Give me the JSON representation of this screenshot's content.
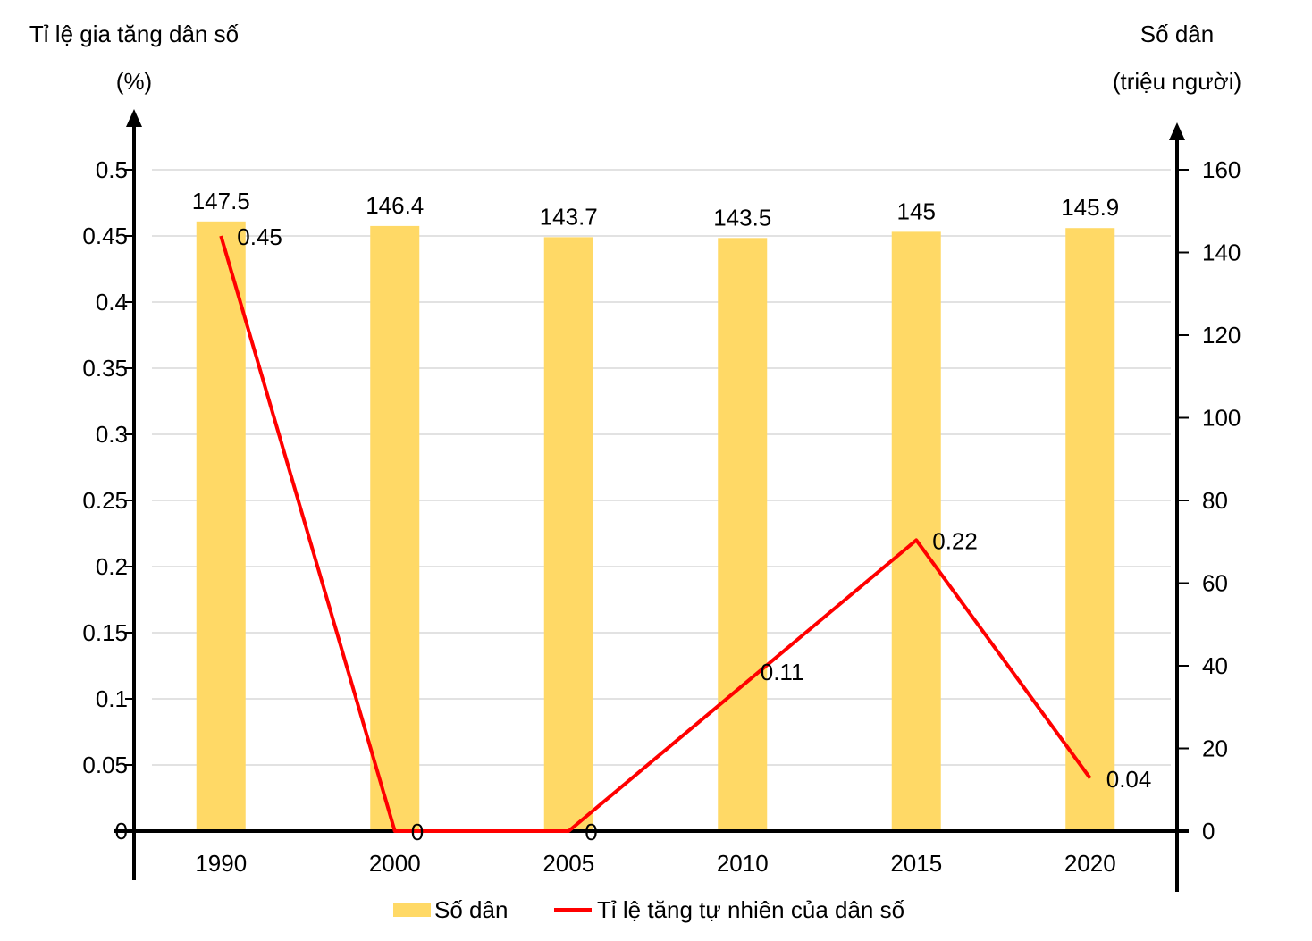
{
  "left_axis": {
    "title_line1": "Tỉ lệ gia tăng dân số",
    "title_line2": "(%)",
    "ticks": [
      "0",
      "0.05",
      "0.1",
      "0.15",
      "0.2",
      "0.25",
      "0.3",
      "0.35",
      "0.4",
      "0.45",
      "0.5"
    ]
  },
  "right_axis": {
    "title_line1": "Số dân",
    "title_line2": "(triệu người)",
    "ticks": [
      "0",
      "20",
      "40",
      "60",
      "80",
      "100",
      "120",
      "140",
      "160"
    ]
  },
  "legend": {
    "bar_label": "Số dân",
    "line_label": "Tỉ lệ tăng tự nhiên của dân số"
  },
  "colors": {
    "bar": "#FFD966",
    "line": "#FF0000",
    "axis": "#000000",
    "grid": "#D9D9D9"
  },
  "chart_data": {
    "type": "bar+line",
    "categories": [
      "1990",
      "2000",
      "2005",
      "2010",
      "2015",
      "2020"
    ],
    "series": [
      {
        "name": "Số dân",
        "type": "bar",
        "axis": "right",
        "values": [
          147.5,
          146.4,
          143.7,
          143.5,
          145,
          145.9
        ],
        "labels": [
          "147.5",
          "146.4",
          "143.7",
          "143.5",
          "145",
          "145.9"
        ]
      },
      {
        "name": "Tỉ lệ tăng tự nhiên của dân số",
        "type": "line",
        "axis": "left",
        "values": [
          0.45,
          0,
          0,
          0.11,
          0.22,
          0.04
        ],
        "labels": [
          "0.45",
          "0",
          "0",
          "0.11",
          "0.22",
          "0.04"
        ]
      }
    ],
    "left_ylim": [
      0,
      0.5
    ],
    "right_ylim": [
      0,
      160
    ],
    "grid": true,
    "legend_position": "bottom"
  }
}
